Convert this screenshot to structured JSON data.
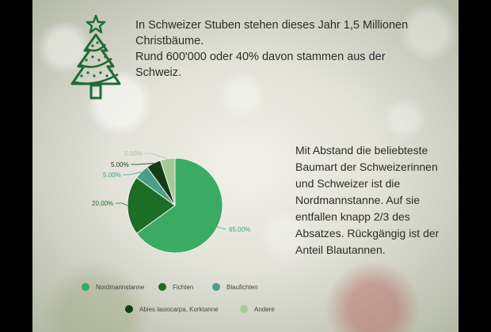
{
  "headline": {
    "line1": "In Schweizer Stuben stehen dieses Jahr 1,5 Millionen",
    "line2": "Christbäume.",
    "line3": "Rund 600'000 oder 40% davon stammen aus der",
    "line4": "Schweiz."
  },
  "icon": "christmas-tree-icon",
  "side_text": "Mit Abstand die beliebteste Baumart der Schweizerinnen und Schweizer ist die Nordmannstanne. Auf sie entfallen knapp 2/3 des Absatzes. Rückgängig ist der Anteil Blautannen.",
  "chart_data": {
    "type": "pie",
    "categories": [
      "Nordmannstanne",
      "Fichten",
      "Blaufichten",
      "Abies lasiocarpa, Korktanne",
      "Andere"
    ],
    "values": [
      65,
      20,
      5,
      5,
      5
    ],
    "value_labels": [
      "65.00%",
      "20.00%",
      "5.00%",
      "5.00%",
      "5.00%"
    ],
    "colors": [
      "#3bab63",
      "#1c6e24",
      "#4a9e8a",
      "#123d16",
      "#a6c996"
    ],
    "legend_position": "bottom"
  }
}
